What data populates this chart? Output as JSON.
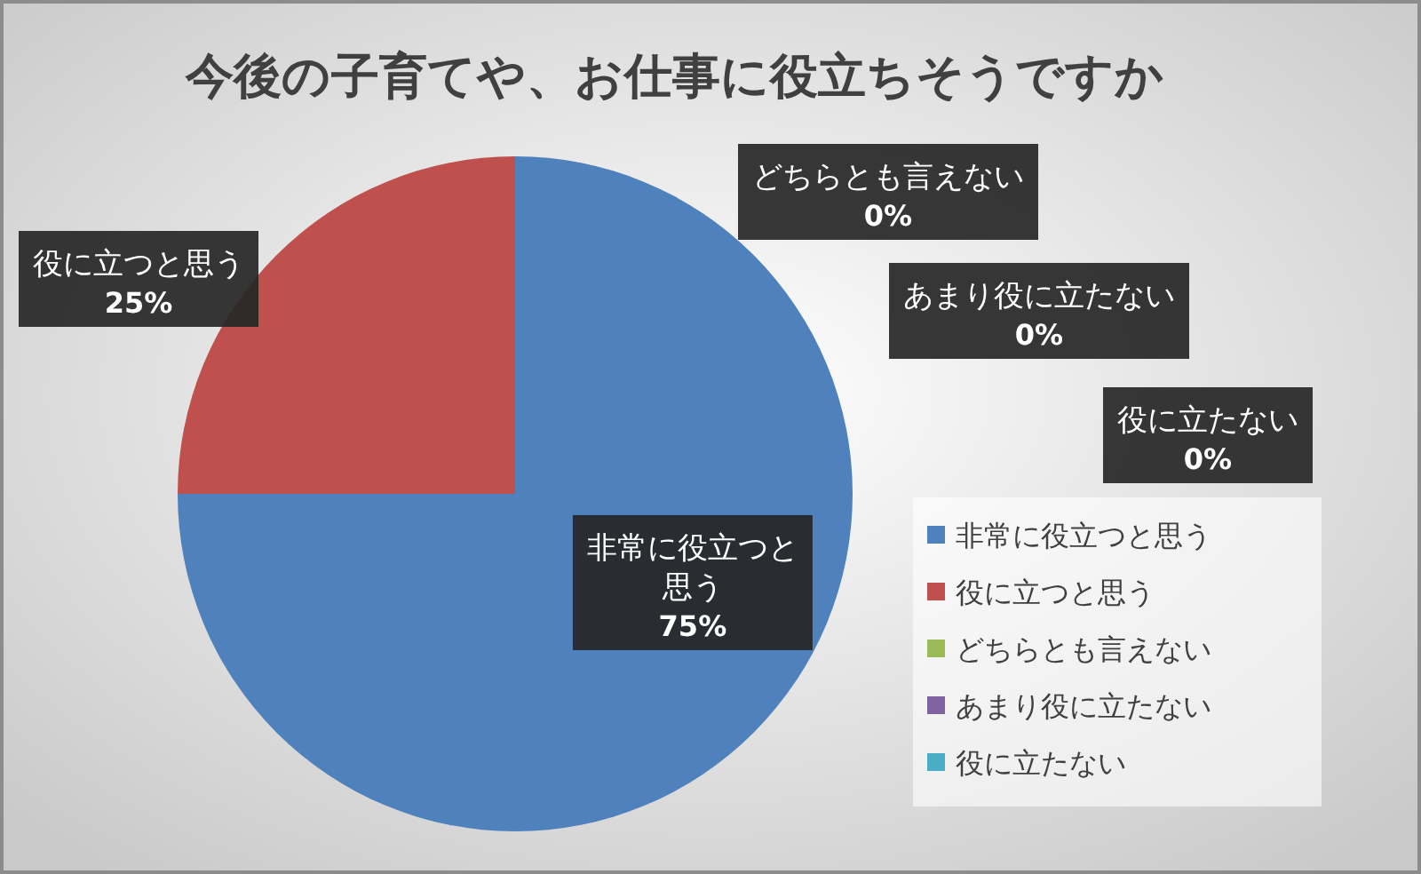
{
  "chart_data": {
    "type": "pie",
    "title": "今後の子育てや、お仕事に役立ちそうですか",
    "categories": [
      "非常に役立つと思う",
      "役に立つと思う",
      "どちらとも言えない",
      "あまり役に立たない",
      "役に立たない"
    ],
    "values": [
      75,
      25,
      0,
      0,
      0
    ],
    "colors": [
      "#4f81bd",
      "#c0504d",
      "#9bbb59",
      "#8064a2",
      "#4bacc6"
    ],
    "value_labels": [
      "75%",
      "25%",
      "0%",
      "0%",
      "0%"
    ],
    "legend": "right"
  }
}
